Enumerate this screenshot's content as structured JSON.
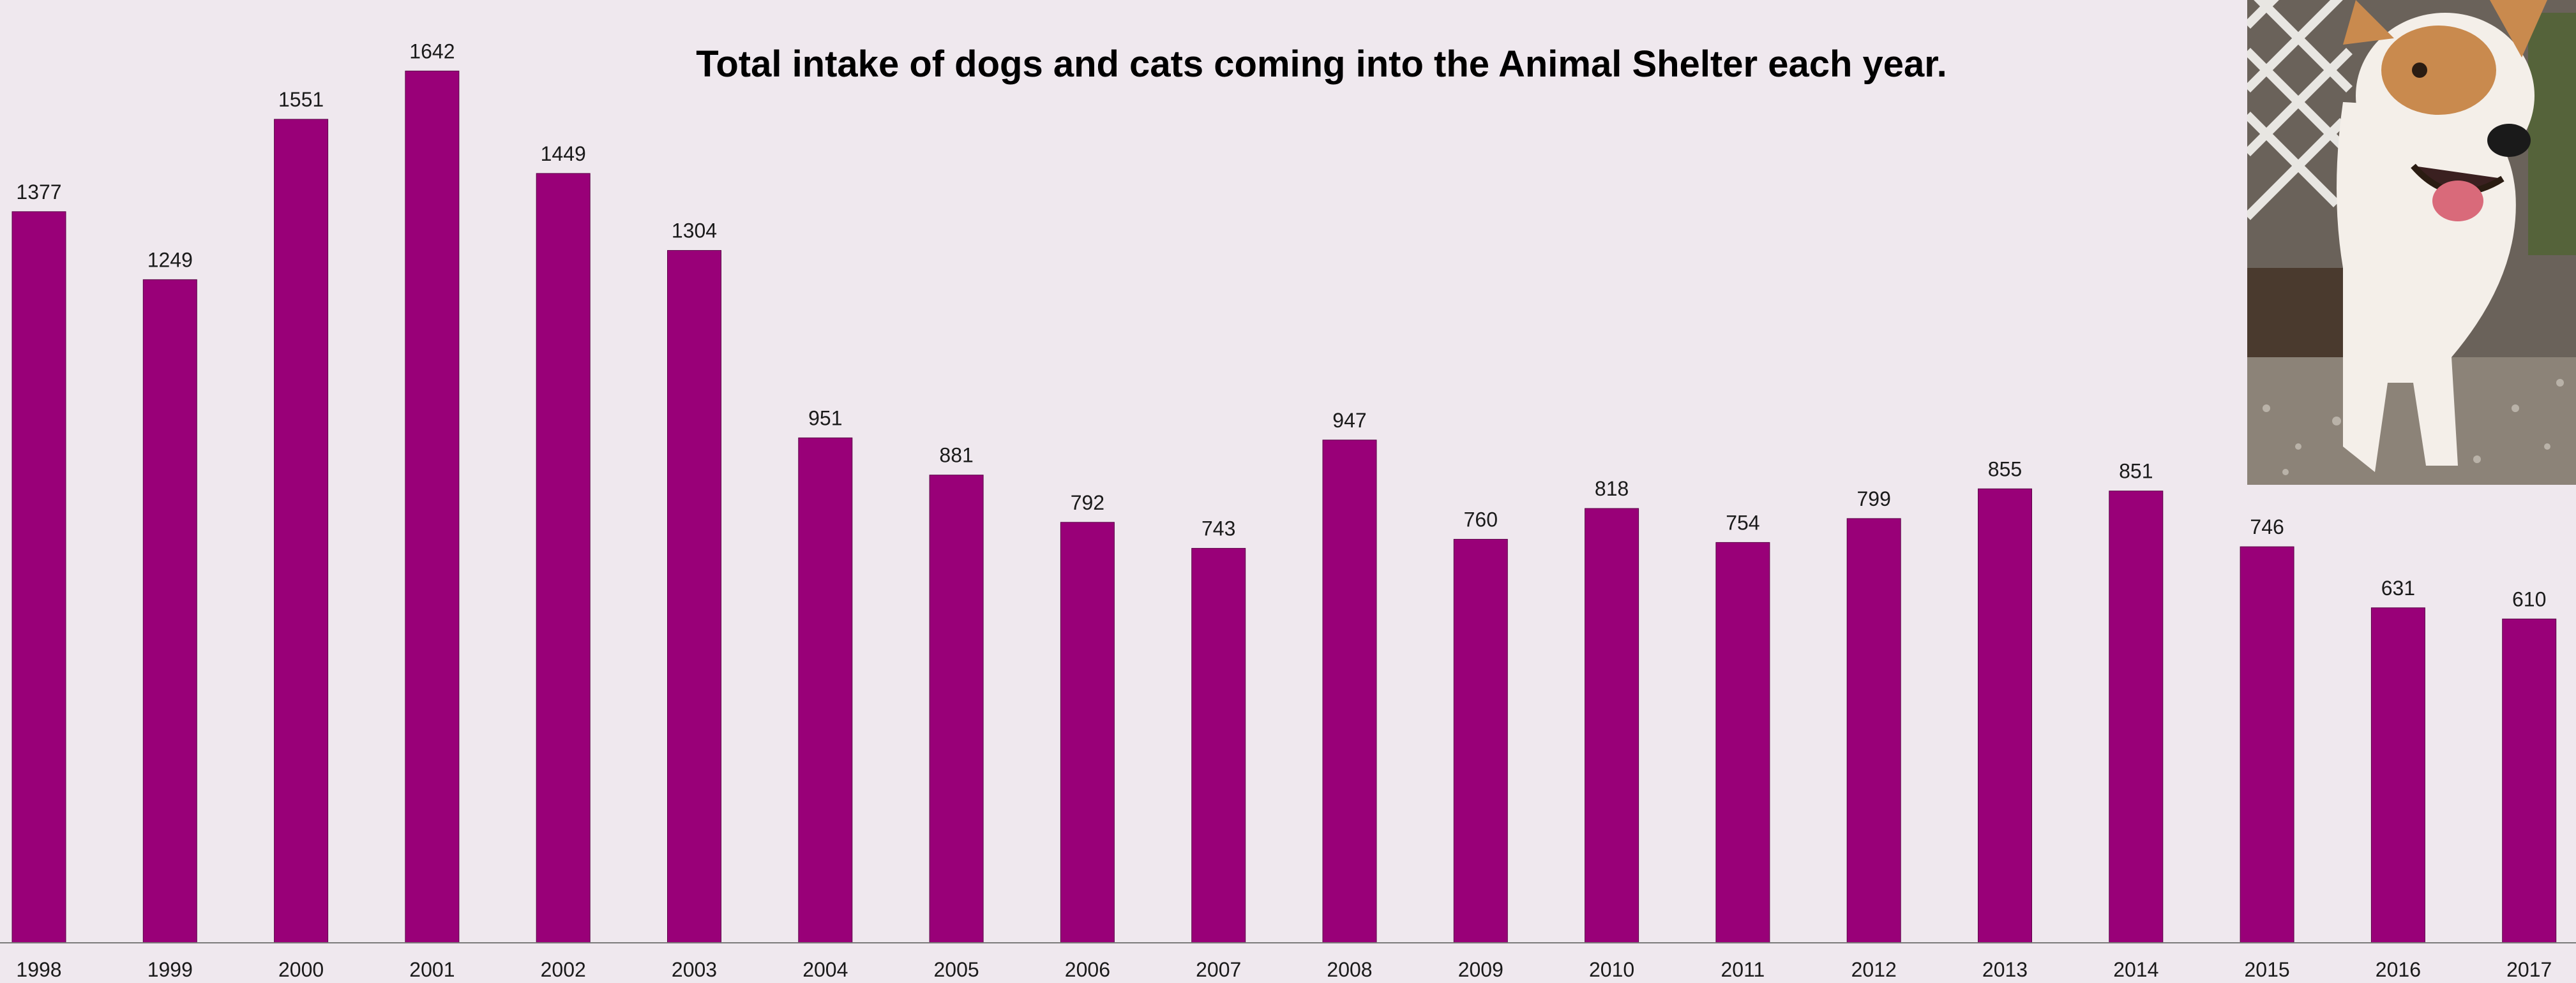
{
  "chart_data": {
    "type": "bar",
    "title": "Total intake of dogs and cats coming into the Animal Shelter each year.",
    "xlabel": "",
    "ylabel": "",
    "categories": [
      "1998",
      "1999",
      "2000",
      "2001",
      "2002",
      "2003",
      "2004",
      "2005",
      "2006",
      "2007",
      "2008",
      "2009",
      "2010",
      "2011",
      "2012",
      "2013",
      "2014",
      "2015",
      "2016",
      "2017"
    ],
    "values": [
      1377,
      1249,
      1551,
      1642,
      1449,
      1304,
      951,
      881,
      792,
      743,
      947,
      760,
      818,
      754,
      799,
      855,
      851,
      746,
      631,
      610
    ],
    "ylim": [
      0,
      1700
    ],
    "grid": false,
    "bar_color": "#990078",
    "data_labels": true
  },
  "photo": {
    "subject": "dog-photo",
    "colors": {
      "coat": "#f4efe9",
      "patch": "#c98a4e",
      "ground": "#8c8378",
      "fence": "#e8e6e2"
    }
  }
}
